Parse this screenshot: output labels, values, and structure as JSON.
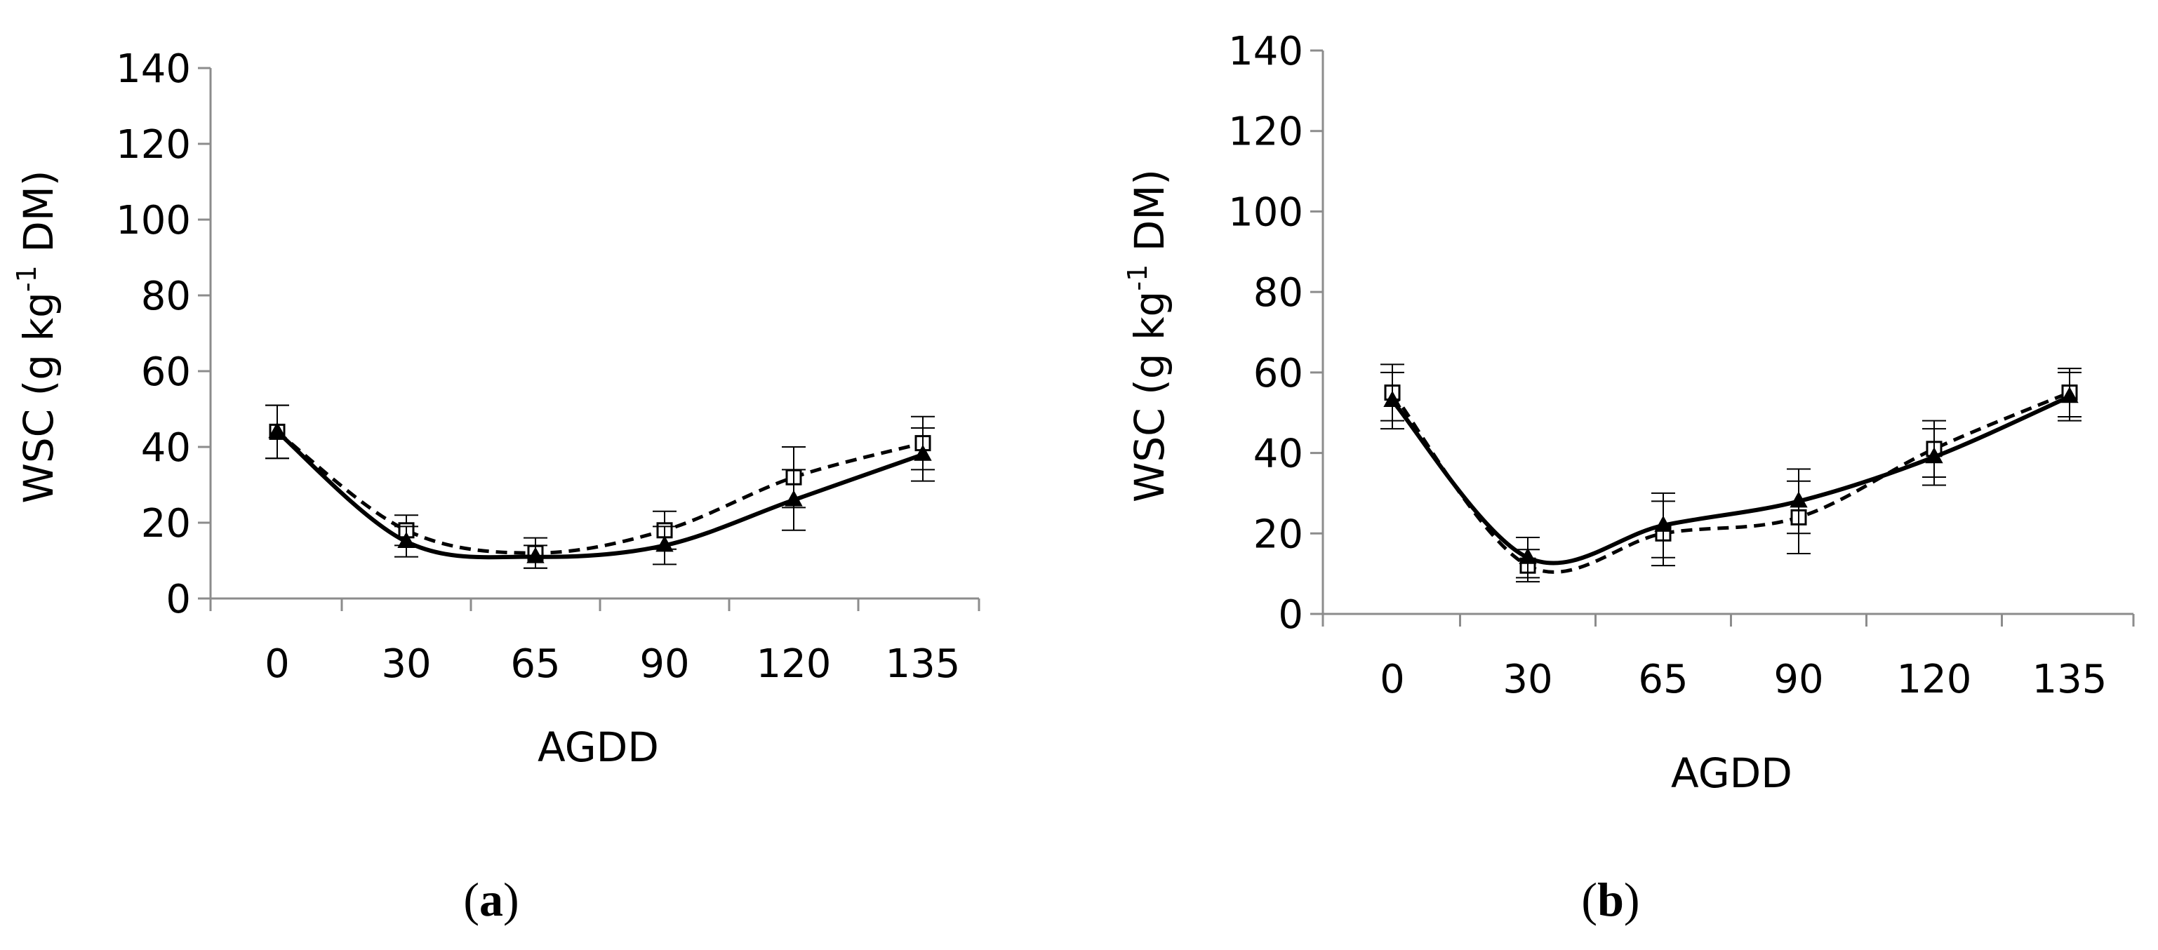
{
  "chart_data": [
    {
      "type": "line",
      "panel_label": "a",
      "caption_open": "(",
      "caption_close": ")",
      "xlabel": "AGDD",
      "ylabel_main": "WSC (g kg",
      "ylabel_sup": "-1",
      "ylabel_tail": " DM)",
      "categories": [
        "0",
        "30",
        "65",
        "90",
        "120",
        "135"
      ],
      "ylim": [
        0,
        140
      ],
      "yticks": [
        0,
        20,
        40,
        60,
        80,
        100,
        120,
        140
      ],
      "series": [
        {
          "name": "open-square-dashed",
          "marker": "square-open",
          "line": "dashed",
          "values": [
            44,
            18,
            12,
            18,
            32,
            41
          ],
          "errors": [
            7,
            4,
            4,
            5,
            8,
            7
          ]
        },
        {
          "name": "filled-triangle-solid",
          "marker": "triangle-filled",
          "line": "solid",
          "values": [
            44,
            15,
            11,
            14,
            26,
            38
          ],
          "errors": [
            7,
            4,
            3,
            5,
            8,
            7
          ]
        }
      ]
    },
    {
      "type": "line",
      "panel_label": "b",
      "caption_open": "(",
      "caption_close": ")",
      "xlabel": "AGDD",
      "ylabel_main": "WSC (g kg",
      "ylabel_sup": "-1",
      "ylabel_tail": " DM)",
      "categories": [
        "0",
        "30",
        "65",
        "90",
        "120",
        "135"
      ],
      "ylim": [
        0,
        140
      ],
      "yticks": [
        0,
        20,
        40,
        60,
        80,
        100,
        120,
        140
      ],
      "series": [
        {
          "name": "open-square-dashed",
          "marker": "square-open",
          "line": "dashed",
          "values": [
            55,
            12,
            20,
            24,
            41,
            55
          ],
          "errors": [
            7,
            4,
            8,
            9,
            7,
            6
          ]
        },
        {
          "name": "filled-triangle-solid",
          "marker": "triangle-filled",
          "line": "solid",
          "values": [
            53,
            14,
            22,
            28,
            39,
            54
          ],
          "errors": [
            7,
            5,
            8,
            8,
            7,
            6
          ]
        }
      ]
    }
  ]
}
